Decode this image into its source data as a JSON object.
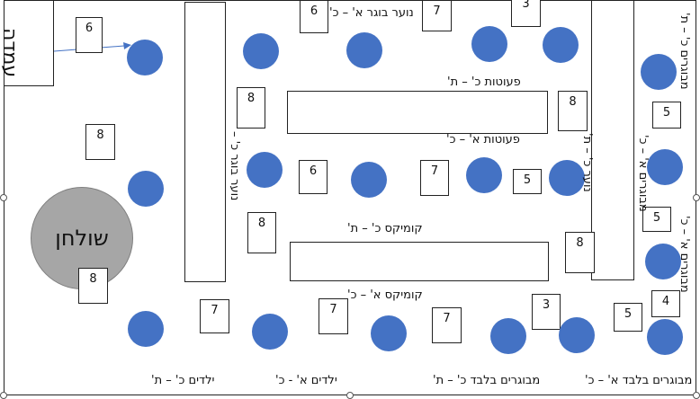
{
  "stage_label": "עמדה",
  "table_label": "שולחן",
  "labels": {
    "noar_boger": "נוער בוגר א' – כ'",
    "peutot_kt": "פעוטות כ' – ת'",
    "peutot_ak": "פעוטות א' – כ'",
    "komiks_kt": "קומיקס כ' – ת'",
    "komiks_ak": "קומיקס א' – כ'",
    "yeladim_kt": "ילדים כ' – ת'",
    "yeladim_ak": "ילדים א' - כ'",
    "mevugarim_bilvad_kt": "מבוגרים בלבד כ' – ת'",
    "mevugarim_bilvad_ak": "מבוגרים בלבד א' – כ'",
    "v_left_shelf": "נוער בוגר כ' –",
    "v_right_shelf": "נוער כ' – ת'",
    "v_right_top": "מבוגרים כ' – ת'",
    "v_right_mid": "מבוגרים א' – כ'",
    "v_right_bottom": "מבוגרים א' – כ'"
  },
  "numbers": {
    "n_stage_arrow": "6",
    "n_top_6": "6",
    "n_top_7": "7",
    "n_top_3": "3",
    "n_left_8a": "8",
    "n_shelf_8a": "8",
    "n_mid_8": "8",
    "n_r_5a": "5",
    "n_mid_6": "6",
    "n_mid_7": "7",
    "n_mid_5": "5",
    "n_r_5b": "5",
    "n_shelf_8b": "8",
    "n_r_8": "8",
    "n_table_8": "8",
    "n_b_7a": "7",
    "n_b_7b": "7",
    "n_b_7c": "7",
    "n_b_3": "3",
    "n_b_5": "5",
    "n_b_4": "4"
  },
  "colors": {
    "dot": "#4472c4",
    "table": "#a6a6a6",
    "arrow": "#4472c4"
  }
}
